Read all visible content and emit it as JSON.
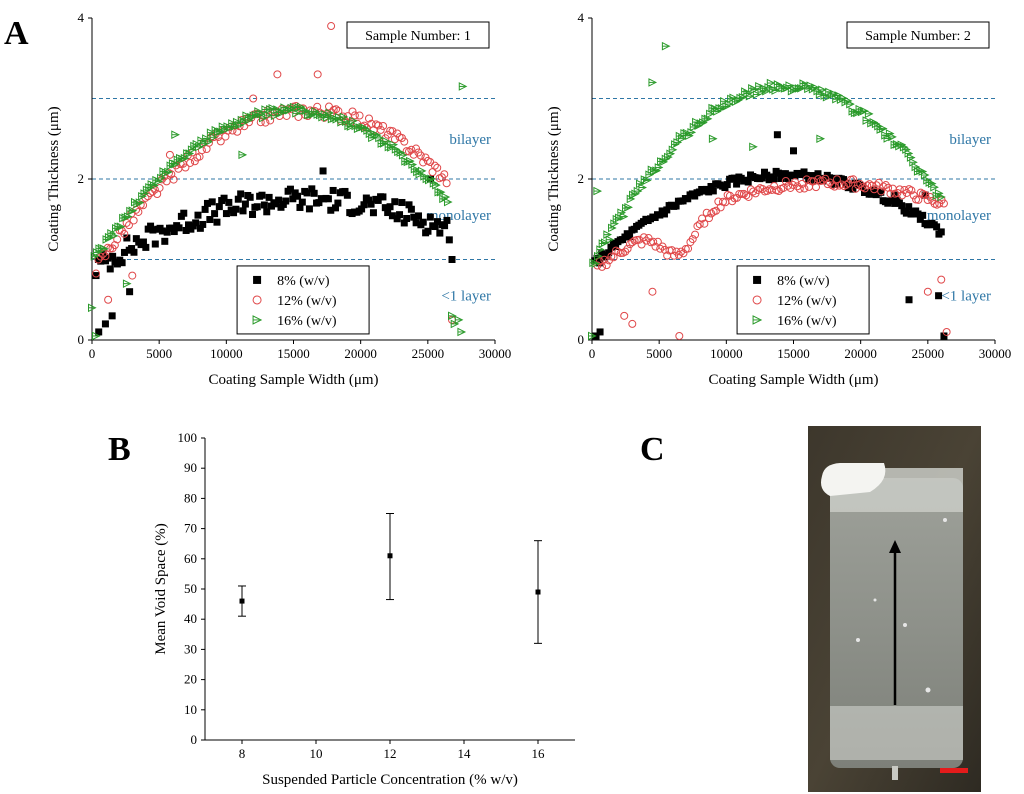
{
  "panels": {
    "a": "A",
    "b": "B",
    "c": "C"
  },
  "colors": {
    "s8": "#000000",
    "s12": "#e0484a",
    "s16": "#2a9a2a",
    "zone": "#2f77a6",
    "scale_bar": "#e41b1b",
    "arrow": "#000000"
  },
  "photo": {
    "description_icon": "coated-slide-photo",
    "arrow_icon": "arrow-up-icon",
    "scale_bar_icon": "scale-bar-icon"
  },
  "chart_data": [
    {
      "type": "scatter",
      "panel": "A",
      "title": "Sample Number: 1",
      "xlabel": "Coating Sample Width (μm)",
      "ylabel": "Coating Thickness (μm)",
      "xlim": [
        0,
        30000
      ],
      "ylim": [
        0,
        4
      ],
      "x_ticks": [
        0,
        5000,
        10000,
        15000,
        20000,
        25000,
        30000
      ],
      "y_ticks": [
        0,
        2,
        4
      ],
      "reference_lines": [
        1.0,
        2.0,
        3.0
      ],
      "zones": [
        {
          "label": "bilayer",
          "y": 2.5
        },
        {
          "label": "monolayer",
          "y": 1.55
        },
        {
          "label": "<1 layer",
          "y": 0.55
        }
      ],
      "series": [
        {
          "name": "8% (w/v)",
          "key": "s8",
          "marker": "square",
          "profile": {
            "start": 300,
            "end": 26600,
            "base": 0.9,
            "peak": 1.75,
            "peak_x": 16000,
            "noise": 0.15
          },
          "outliers": [
            [
              500,
              0.1
            ],
            [
              1000,
              0.2
            ],
            [
              1500,
              0.3
            ],
            [
              2800,
              0.6
            ],
            [
              17200,
              2.1
            ],
            [
              25200,
              2.0
            ],
            [
              26800,
              1.0
            ]
          ]
        },
        {
          "name": "12% (w/v)",
          "key": "s12",
          "marker": "circle",
          "profile": {
            "start": 300,
            "end": 26400,
            "base": 0.9,
            "peak": 2.85,
            "peak_x": 16000,
            "noise": 0.08
          },
          "outliers": [
            [
              1200,
              0.5
            ],
            [
              3000,
              0.8
            ],
            [
              5800,
              2.3
            ],
            [
              12000,
              3.0
            ],
            [
              13800,
              3.3
            ],
            [
              16800,
              3.3
            ],
            [
              17800,
              3.9
            ],
            [
              26800,
              0.25
            ]
          ]
        },
        {
          "name": "16% (w/v)",
          "key": "s16",
          "marker": "triangle",
          "profile": {
            "start": 200,
            "end": 26500,
            "base": 1.0,
            "peak": 2.85,
            "peak_x": 15000,
            "noise": 0.05
          },
          "outliers": [
            [
              0,
              0.4
            ],
            [
              300,
              0.05
            ],
            [
              2600,
              0.7
            ],
            [
              6200,
              2.55
            ],
            [
              11200,
              2.3
            ],
            [
              27600,
              3.15
            ],
            [
              26800,
              0.3
            ],
            [
              27000,
              0.2
            ],
            [
              27300,
              0.25
            ],
            [
              27500,
              0.1
            ]
          ]
        }
      ]
    },
    {
      "type": "scatter",
      "panel": "A",
      "title": "Sample Number: 2",
      "xlabel": "Coating Sample Width (μm)",
      "ylabel": "Coating Thickness (μm)",
      "xlim": [
        0,
        30000
      ],
      "ylim": [
        0,
        4
      ],
      "x_ticks": [
        0,
        5000,
        10000,
        15000,
        20000,
        25000,
        30000
      ],
      "y_ticks": [
        0,
        2,
        4
      ],
      "reference_lines": [
        1.0,
        2.0,
        3.0
      ],
      "zones": [
        {
          "label": "bilayer",
          "y": 2.5
        },
        {
          "label": "monolayer",
          "y": 1.55
        },
        {
          "label": "<1 layer",
          "y": 0.55
        }
      ],
      "series": [
        {
          "name": "8% (w/v)",
          "key": "s8",
          "marker": "square",
          "profile": {
            "start": 200,
            "end": 26000,
            "base": 0.95,
            "peak": 2.05,
            "peak_x": 14500,
            "noise": 0.05
          },
          "outliers": [
            [
              300,
              0.05
            ],
            [
              600,
              0.1
            ],
            [
              13800,
              2.55
            ],
            [
              15000,
              2.35
            ],
            [
              22500,
              1.8
            ],
            [
              23600,
              0.5
            ],
            [
              24800,
              1.8
            ],
            [
              25800,
              0.55
            ],
            [
              26200,
              0.05
            ]
          ]
        },
        {
          "name": "12% (w/v)",
          "key": "s12",
          "marker": "circle",
          "profile": {
            "start": 400,
            "end": 26200,
            "base": 0.9,
            "peak": 1.95,
            "peak_x": 17500,
            "noise": 0.06,
            "dip": true
          },
          "outliers": [
            [
              2400,
              0.3
            ],
            [
              3000,
              0.2
            ],
            [
              4500,
              0.6
            ],
            [
              6500,
              0.05
            ],
            [
              25000,
              0.6
            ],
            [
              26000,
              0.75
            ],
            [
              26400,
              0.1
            ]
          ]
        },
        {
          "name": "16% (w/v)",
          "key": "s16",
          "marker": "triangle",
          "profile": {
            "start": 100,
            "end": 26000,
            "base": 0.95,
            "peak": 3.15,
            "peak_x": 14500,
            "noise": 0.06
          },
          "outliers": [
            [
              400,
              1.85
            ],
            [
              4500,
              3.2
            ],
            [
              5500,
              3.65
            ],
            [
              9000,
              2.5
            ],
            [
              12000,
              2.4
            ],
            [
              17000,
              2.5
            ],
            [
              0,
              0.05
            ]
          ]
        }
      ]
    },
    {
      "type": "scatter",
      "panel": "B",
      "title": "",
      "xlabel": "Suspended Particle Concentration (% w/v)",
      "ylabel": "Mean Void Space (%)",
      "xlim": [
        7,
        17
      ],
      "ylim": [
        0,
        100
      ],
      "x_ticks": [
        8,
        10,
        12,
        14,
        16
      ],
      "y_ticks": [
        0,
        10,
        20,
        30,
        40,
        50,
        60,
        70,
        80,
        90,
        100
      ],
      "points": [
        {
          "x": 8,
          "y": 46,
          "err_low": 41,
          "err_high": 51
        },
        {
          "x": 12,
          "y": 61,
          "err_low": 46.5,
          "err_high": 75
        },
        {
          "x": 16,
          "y": 49,
          "err_low": 32,
          "err_high": 66
        }
      ]
    }
  ]
}
